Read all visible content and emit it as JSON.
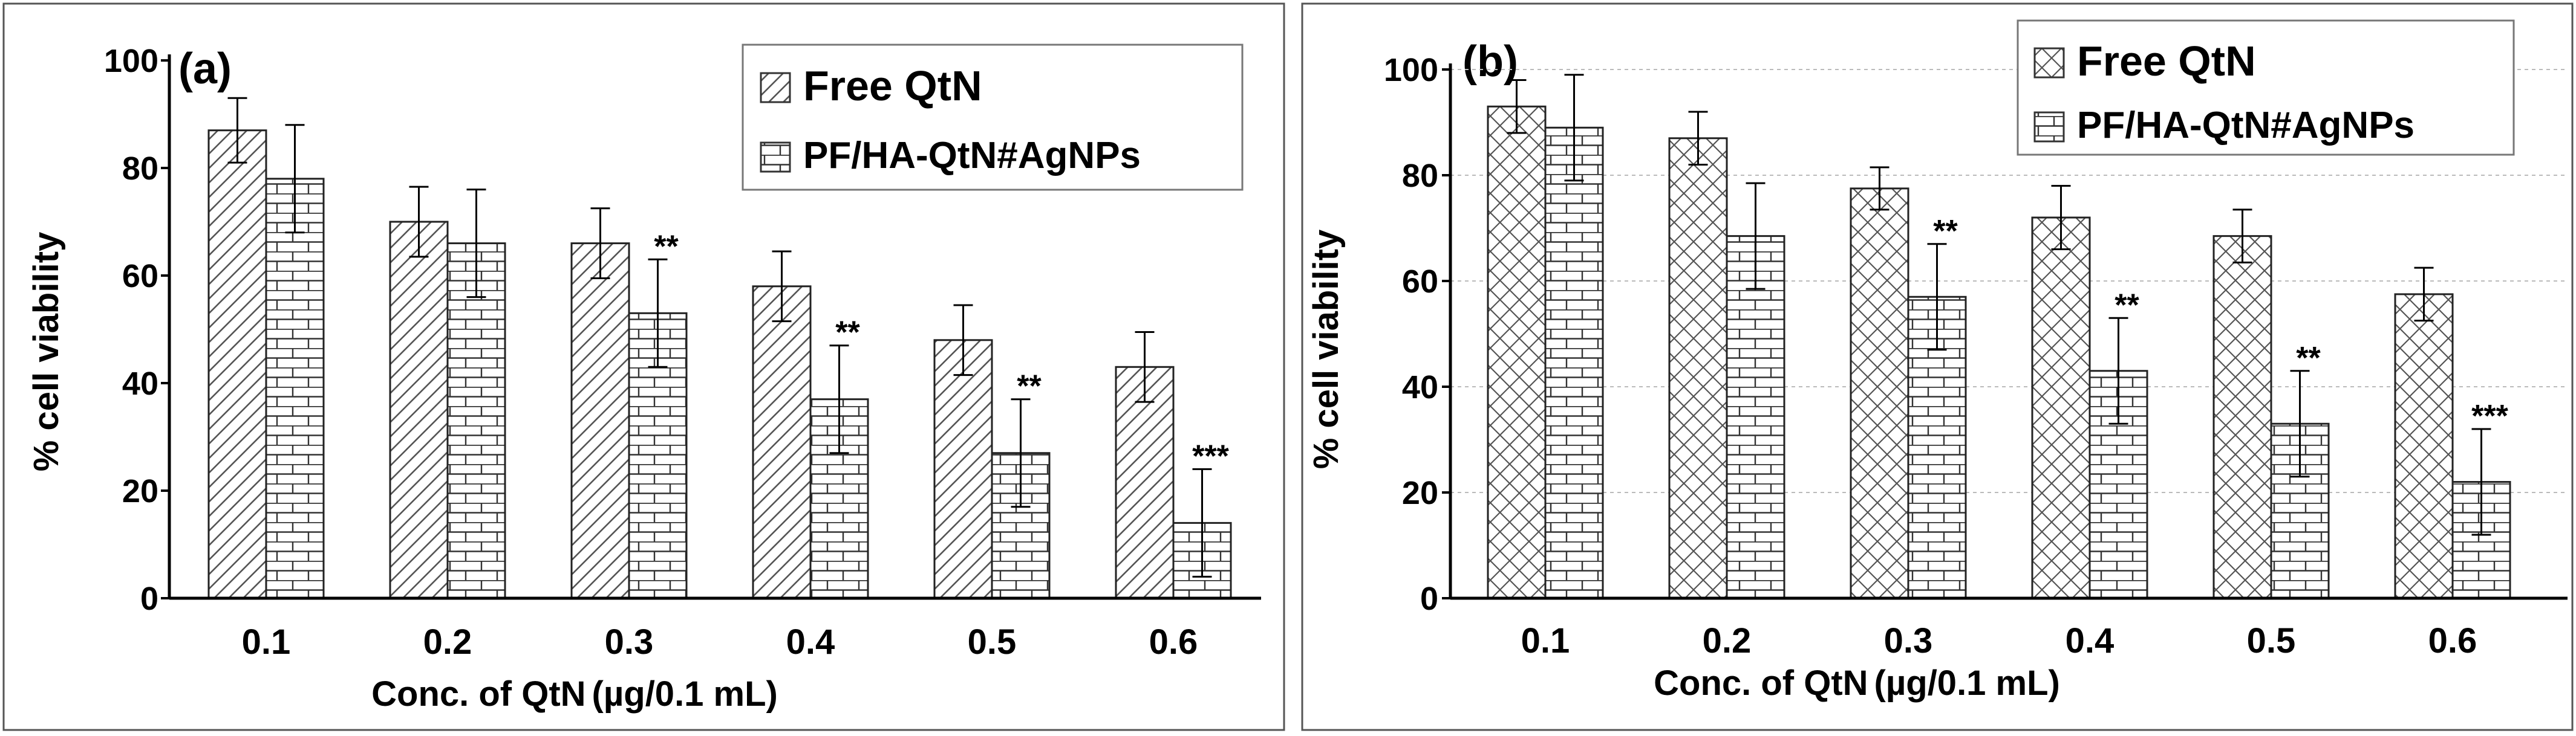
{
  "chart_data": [
    {
      "type": "bar",
      "panel_label": "(a)",
      "ylabel": "% cell viability",
      "xlabel": "Conc. of QtN (µg/0.1 mL)",
      "xlabel_main": "Conc. of QtN",
      "xlabel_units": "(µg/0.1 mL)",
      "ylim": [
        0,
        100
      ],
      "yticks": [
        "0",
        "20",
        "40",
        "60",
        "80",
        "100"
      ],
      "categories": [
        "0.1",
        "0.2",
        "0.3",
        "0.4",
        "0.5",
        "0.6"
      ],
      "legend_position": "top-right",
      "series": [
        {
          "name": "Free QtN",
          "values": [
            87,
            70,
            66,
            58,
            48,
            43
          ],
          "errors": [
            6,
            6.5,
            6.5,
            6.5,
            6.5,
            6.5
          ],
          "significance": [
            "",
            "",
            "",
            "",
            "",
            ""
          ]
        },
        {
          "name": "PF/HA-QtN#AgNPs",
          "values": [
            78,
            66,
            53,
            37,
            27,
            14
          ],
          "errors": [
            10,
            10,
            10,
            10,
            10,
            10
          ],
          "significance": [
            "",
            "",
            "**",
            "**",
            "**",
            "***"
          ]
        }
      ]
    },
    {
      "type": "bar",
      "panel_label": "(b)",
      "ylabel": "% cell viability",
      "xlabel": "Conc. of QtN (µg/0.1 mL)",
      "xlabel_main": "Conc. of QtN",
      "xlabel_units": "(µg/0.1 mL)",
      "ylim": [
        0,
        100
      ],
      "yticks": [
        "0",
        "20",
        "40",
        "60",
        "80",
        "100"
      ],
      "categories": [
        "0.1",
        "0.2",
        "0.3",
        "0.4",
        "0.5",
        "0.6"
      ],
      "legend_position": "top-right",
      "series": [
        {
          "name": "Free QtN",
          "values": [
            93,
            87,
            77.5,
            72,
            68.5,
            57.5
          ],
          "errors": [
            5,
            5,
            4,
            6,
            5,
            5
          ],
          "significance": [
            "",
            "",
            "",
            "",
            "",
            ""
          ]
        },
        {
          "name": "PF/HA-QtN#AgNPs",
          "values": [
            89,
            68.5,
            57,
            43,
            33,
            22
          ],
          "errors": [
            10,
            10,
            10,
            10,
            10,
            10
          ],
          "significance": [
            "",
            "",
            "**",
            "**",
            "**",
            "***"
          ]
        }
      ]
    }
  ]
}
